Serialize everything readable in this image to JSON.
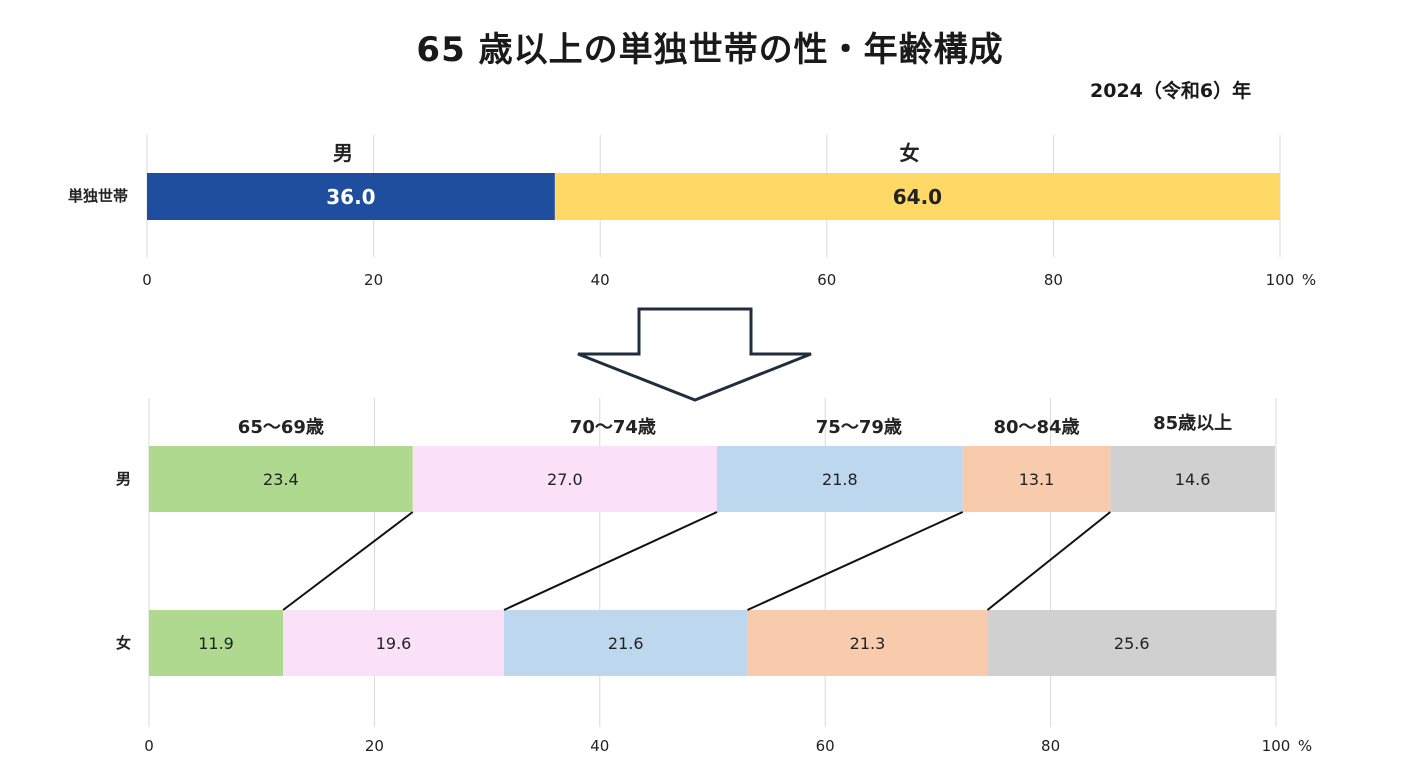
{
  "title": "65 歳以上の単独世帯の性・年齢構成",
  "subtitle": "2024（令和6）年",
  "chart_data": [
    {
      "type": "bar",
      "stacked": true,
      "orientation": "horizontal",
      "categories": [
        "単独世帯"
      ],
      "series": [
        {
          "name": "男",
          "values": [
            36.0
          ],
          "color": "#1f4e9f"
        },
        {
          "name": "女",
          "values": [
            64.0
          ],
          "color": "#ffd966"
        }
      ],
      "x_ticks": [
        "0",
        "20",
        "40",
        "60",
        "80",
        "100"
      ],
      "x_unit": "%",
      "xlim": [
        0,
        100
      ],
      "grid": true
    },
    {
      "type": "bar",
      "stacked": true,
      "orientation": "horizontal",
      "categories": [
        "男",
        "女"
      ],
      "series": [
        {
          "name": "65～69歳",
          "values": [
            23.4,
            11.9
          ],
          "color": "#aed98e"
        },
        {
          "name": "70～74歳",
          "values": [
            27.0,
            19.6
          ],
          "color": "#fbe1f8"
        },
        {
          "name": "75～79歳",
          "values": [
            21.8,
            21.6
          ],
          "color": "#bdd7ee"
        },
        {
          "name": "80～84歳",
          "values": [
            13.1,
            21.3
          ],
          "color": "#f8cbad"
        },
        {
          "name": "85歳以上",
          "values": [
            14.6,
            25.6
          ],
          "color": "#d0d0d0"
        }
      ],
      "x_ticks": [
        "0",
        "20",
        "40",
        "60",
        "80",
        "100"
      ],
      "x_unit": "%",
      "xlim": [
        0,
        100
      ],
      "grid": true
    }
  ]
}
